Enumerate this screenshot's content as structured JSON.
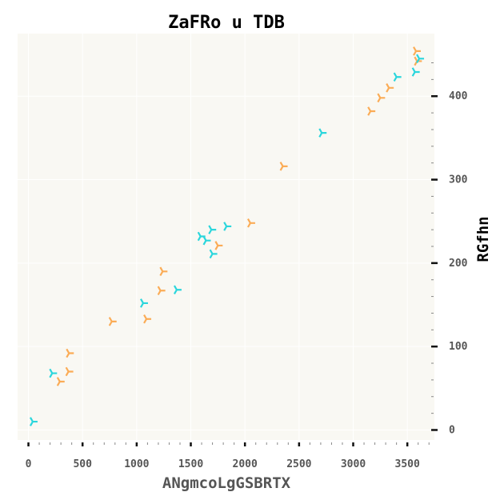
{
  "chart_data": {
    "type": "scatter",
    "title": "ZaFRo u TDB",
    "xlabel": "ANgmcoLgGSBRTX",
    "ylabel": "RGfhn",
    "xlim": [
      -100,
      3750
    ],
    "ylim": [
      -12,
      475
    ],
    "xticks": [
      0,
      500,
      1000,
      1500,
      2000,
      2500,
      3000,
      3500
    ],
    "yticks": [
      0,
      100,
      200,
      300,
      400
    ],
    "y_axis_position": "right",
    "grid": true,
    "background_color": "#f9f8f3",
    "marker": "tri_left",
    "series": [
      {
        "color": "#fbac56",
        "points": [
          [
            290,
            58
          ],
          [
            370,
            70
          ],
          [
            375,
            92
          ],
          [
            770,
            130
          ],
          [
            1090,
            133
          ],
          [
            1220,
            167
          ],
          [
            1240,
            190
          ],
          [
            1750,
            221
          ],
          [
            2050,
            248
          ],
          [
            2350,
            316
          ],
          [
            3160,
            382
          ],
          [
            3250,
            398
          ],
          [
            3330,
            410
          ],
          [
            3580,
            454
          ],
          [
            3590,
            442
          ]
        ]
      },
      {
        "color": "#2bd6dc",
        "points": [
          [
            40,
            10
          ],
          [
            220,
            68
          ],
          [
            1060,
            152
          ],
          [
            1370,
            168
          ],
          [
            1590,
            232
          ],
          [
            1640,
            227
          ],
          [
            1690,
            240
          ],
          [
            1700,
            211
          ],
          [
            1830,
            244
          ],
          [
            2710,
            356
          ],
          [
            3400,
            423
          ],
          [
            3570,
            429
          ],
          [
            3610,
            445
          ]
        ]
      }
    ]
  }
}
